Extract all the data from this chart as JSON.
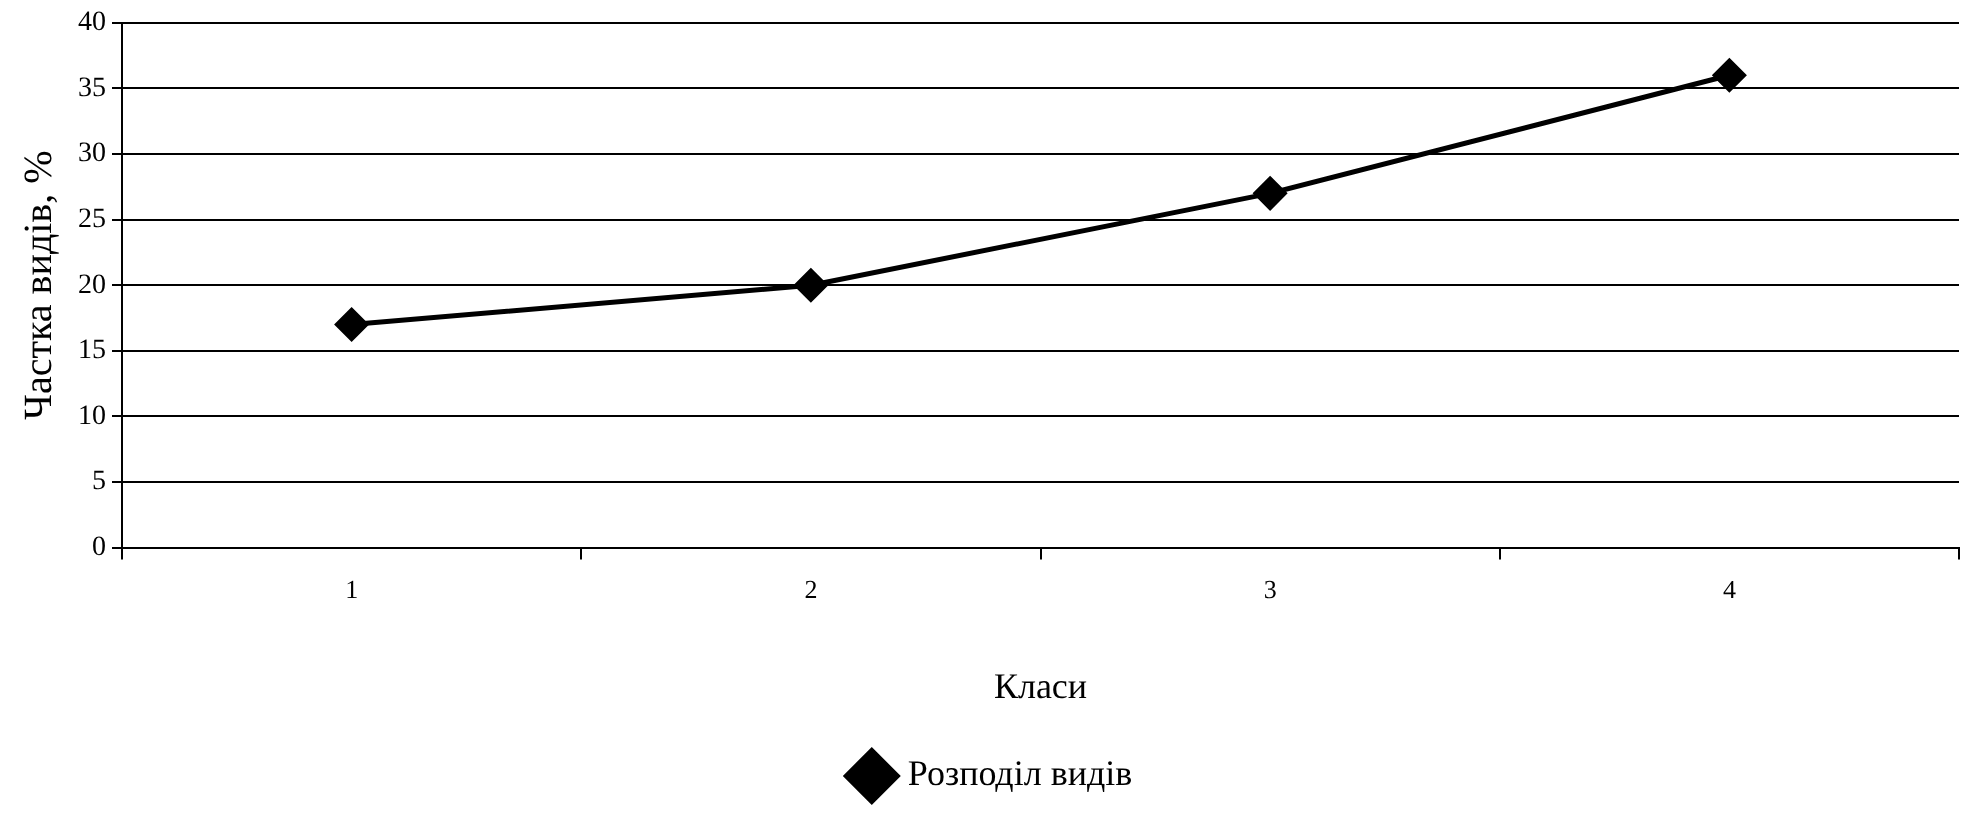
{
  "chart_data": {
    "type": "line",
    "xlabel": "Класи",
    "ylabel": "Частка видів, %",
    "categories": [
      "1",
      "2",
      "3",
      "4"
    ],
    "series": [
      {
        "name": "Розподіл видів",
        "color": "#000000",
        "values": [
          17,
          20,
          27,
          36
        ]
      }
    ],
    "ylim": [
      0,
      40
    ],
    "yticks": [
      0,
      5,
      10,
      15,
      20,
      25,
      30,
      35,
      40
    ],
    "grid": "y",
    "legend": "bottom",
    "marker": "diamond",
    "line_style": "solid"
  }
}
